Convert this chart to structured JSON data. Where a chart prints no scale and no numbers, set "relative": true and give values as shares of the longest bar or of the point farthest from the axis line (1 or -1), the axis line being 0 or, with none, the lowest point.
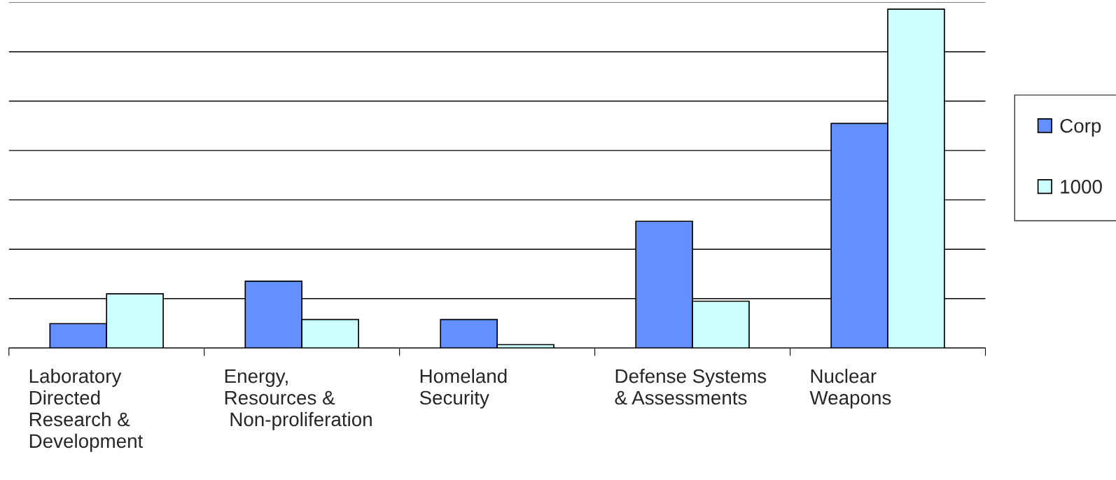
{
  "chart_data": {
    "type": "bar",
    "relative": true,
    "grid": "y",
    "legend": "right",
    "categories": [
      "Laboratory\nDirected\nResearch &\nDevelopment",
      "Energy,\nResources &\n Non-proliferation",
      "Homeland\nSecurity",
      "Defense Systems\n& Assessments",
      "Nuclear\nWeapons"
    ],
    "series": [
      {
        "name": "Corp",
        "color": "#6490ff",
        "values": [
          0.072,
          0.197,
          0.084,
          0.374,
          0.663
        ]
      },
      {
        "name": "1000",
        "color": "#ccffff",
        "values": [
          0.16,
          0.084,
          0.01,
          0.138,
          1
        ]
      }
    ]
  }
}
